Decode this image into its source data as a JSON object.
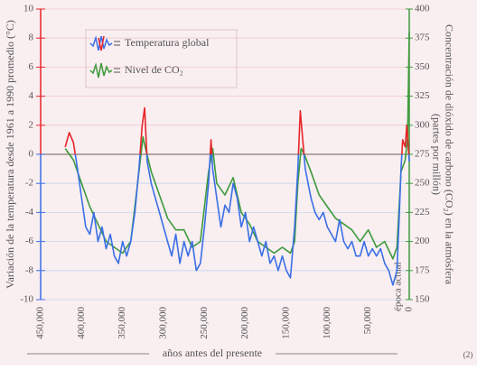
{
  "chart_data": {
    "type": "line",
    "y_axis_label": "Variación de la temperatura desde 1961 a 1990 promedio  (°C)",
    "y2_axis_label": [
      "Concentración de dióxido de carbono (CO₂) en la atmósfera",
      "(partes por millón)"
    ],
    "x_axis_label": "años antes del presente",
    "x_end_label": "época actual",
    "footnote": "(2)",
    "xlim": [
      450000,
      0
    ],
    "xticks": [
      {
        "value": 450000,
        "label": "450,000"
      },
      {
        "value": 400000,
        "label": "400,000"
      },
      {
        "value": 350000,
        "label": "350,000"
      },
      {
        "value": 300000,
        "label": "300,000"
      },
      {
        "value": 250000,
        "label": "250,000"
      },
      {
        "value": 200000,
        "label": "200,000"
      },
      {
        "value": 150000,
        "label": "150,000"
      },
      {
        "value": 100000,
        "label": "100,000"
      },
      {
        "value": 50000,
        "label": "50,000"
      },
      0
    ],
    "ylim": [
      -10,
      10
    ],
    "yticks": [
      -10,
      -8,
      -6,
      -4,
      -2,
      0,
      2,
      4,
      6,
      8,
      10
    ],
    "y2lim": [
      150,
      400
    ],
    "y2ticks": [
      150,
      175,
      200,
      225,
      250,
      275,
      300,
      325,
      350,
      375,
      400
    ],
    "grid": true,
    "series": [
      {
        "name": "Temperatura global",
        "color": "#3a6fe6",
        "color_above_zero": "#e8242a",
        "x": [
          420000,
          415000,
          410000,
          405000,
          400000,
          395000,
          390000,
          385000,
          380000,
          375000,
          370000,
          365000,
          360000,
          355000,
          350000,
          345000,
          340000,
          335000,
          330000,
          326000,
          323000,
          320000,
          315000,
          310000,
          305000,
          300000,
          295000,
          290000,
          285000,
          280000,
          275000,
          270000,
          265000,
          260000,
          255000,
          250000,
          245000,
          242000,
          240000,
          235000,
          230000,
          225000,
          220000,
          215000,
          210000,
          205000,
          200000,
          195000,
          190000,
          185000,
          180000,
          175000,
          170000,
          165000,
          160000,
          155000,
          150000,
          145000,
          140000,
          136000,
          133000,
          130000,
          127000,
          120000,
          115000,
          110000,
          105000,
          100000,
          95000,
          90000,
          85000,
          80000,
          75000,
          70000,
          65000,
          60000,
          55000,
          50000,
          45000,
          40000,
          35000,
          30000,
          25000,
          20000,
          15000,
          12000,
          10000,
          8000,
          5000,
          3000,
          0
        ],
        "values": [
          0.5,
          1.5,
          0.8,
          -1,
          -3,
          -5,
          -5.5,
          -4,
          -6,
          -5,
          -6.5,
          -5.5,
          -7,
          -7.5,
          -6,
          -7,
          -6,
          -4,
          -1,
          2,
          3.2,
          -0.5,
          -2,
          -3,
          -4,
          -5,
          -6,
          -7,
          -5.5,
          -7.5,
          -6,
          -7,
          -6,
          -8,
          -7.5,
          -5,
          -2,
          1,
          -1,
          -3,
          -5,
          -3.5,
          -4,
          -2,
          -3,
          -5,
          -4,
          -6,
          -5,
          -6,
          -7,
          -6,
          -7.5,
          -7,
          -8,
          -7,
          -8,
          -8.5,
          -5,
          -1,
          3,
          1,
          -1,
          -3,
          -4,
          -4.5,
          -4,
          -5,
          -5.5,
          -6,
          -4.5,
          -6,
          -6.5,
          -6,
          -7,
          -7,
          -6,
          -7,
          -6.5,
          -7,
          -6.5,
          -7.5,
          -8,
          -9,
          -8,
          -4,
          -1,
          1,
          0.5,
          2,
          -0.5
        ]
      },
      {
        "name": "Nivel de CO₂",
        "color": "#3c9a3c",
        "axis": "y2",
        "x": [
          420000,
          410000,
          400000,
          395000,
          390000,
          380000,
          370000,
          360000,
          350000,
          340000,
          335000,
          330000,
          325000,
          322000,
          315000,
          305000,
          295000,
          285000,
          275000,
          265000,
          255000,
          250000,
          245000,
          240000,
          235000,
          225000,
          215000,
          205000,
          195000,
          185000,
          175000,
          165000,
          155000,
          145000,
          140000,
          136000,
          132000,
          128000,
          120000,
          110000,
          100000,
          90000,
          80000,
          70000,
          60000,
          50000,
          40000,
          30000,
          20000,
          15000,
          10000,
          5000,
          2000,
          0
        ],
        "values": [
          280,
          270,
          250,
          240,
          230,
          215,
          200,
          195,
          190,
          200,
          230,
          260,
          290,
          280,
          260,
          240,
          220,
          210,
          210,
          195,
          200,
          230,
          260,
          280,
          250,
          240,
          255,
          225,
          215,
          200,
          195,
          190,
          195,
          190,
          200,
          250,
          280,
          275,
          260,
          240,
          230,
          220,
          215,
          210,
          200,
          210,
          195,
          200,
          185,
          195,
          260,
          270,
          290,
          380
        ]
      }
    ]
  }
}
